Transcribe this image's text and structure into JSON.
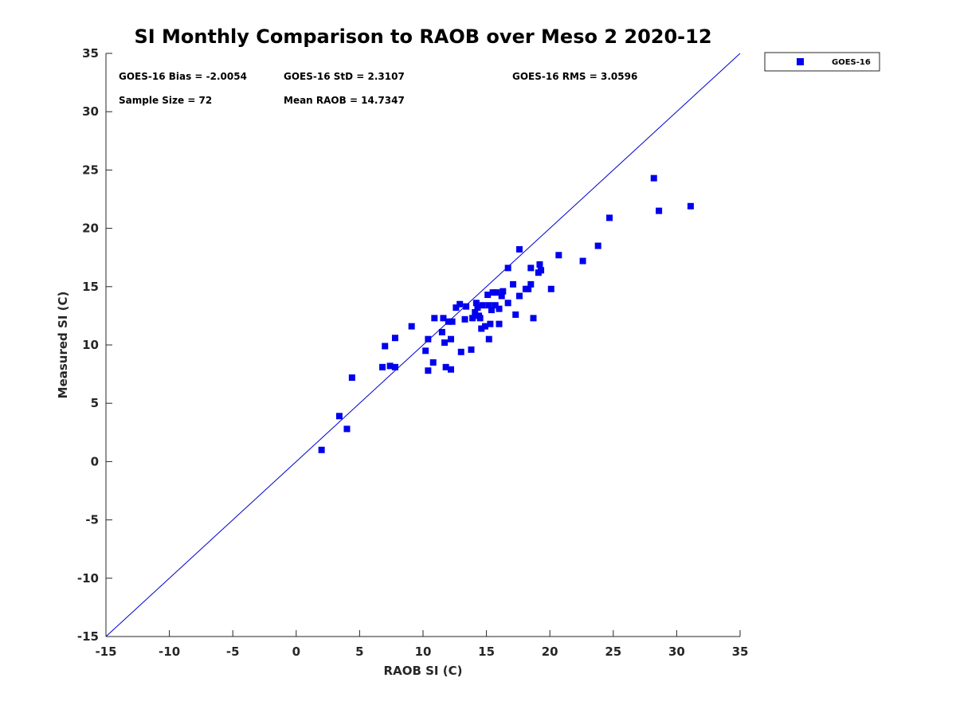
{
  "chart_data": {
    "type": "scatter",
    "title": "SI Monthly Comparison to RAOB over Meso 2 2020-12",
    "xlabel": "RAOB SI (C)",
    "ylabel": "Measured SI (C)",
    "xlim": [
      -15,
      35
    ],
    "ylim": [
      -15,
      35
    ],
    "xticks": [
      -15,
      -10,
      -5,
      0,
      5,
      10,
      15,
      20,
      25,
      30,
      35
    ],
    "yticks": [
      -15,
      -10,
      -5,
      0,
      5,
      10,
      15,
      20,
      25,
      30,
      35
    ],
    "grid": false,
    "legend_position": "outside-top-right",
    "colors": {
      "series": "#0000ee",
      "reference_line": "#0000cc",
      "axis": "#262626"
    },
    "reference_line": {
      "name": "one-to-one",
      "x": [
        -15,
        35
      ],
      "y": [
        -15,
        35
      ]
    },
    "stats": {
      "bias": "GOES-16 Bias = -2.0054",
      "std": "GOES-16 StD = 2.3107",
      "rms": "GOES-16 RMS = 3.0596",
      "sample_size": "Sample Size = 72",
      "mean_raob": "Mean RAOB = 14.7347"
    },
    "series": [
      {
        "name": "GOES-16",
        "marker": "square",
        "x": [
          2.0,
          3.4,
          4.0,
          4.4,
          6.8,
          7.0,
          7.4,
          7.8,
          7.8,
          9.1,
          10.2,
          10.4,
          10.4,
          10.8,
          10.9,
          11.5,
          11.6,
          11.7,
          11.8,
          12.0,
          12.2,
          12.2,
          12.3,
          12.6,
          12.9,
          13.0,
          13.3,
          13.4,
          13.8,
          13.9,
          14.1,
          14.2,
          14.3,
          14.4,
          14.5,
          14.6,
          14.7,
          14.9,
          15.1,
          15.2,
          15.2,
          15.3,
          15.4,
          15.5,
          15.7,
          15.8,
          16.0,
          16.0,
          16.2,
          16.3,
          16.7,
          16.7,
          17.1,
          17.3,
          17.6,
          17.6,
          18.1,
          18.3,
          18.5,
          18.5,
          18.7,
          19.1,
          19.2,
          19.3,
          20.1,
          20.7,
          22.6,
          23.8,
          24.7,
          28.2,
          28.6,
          31.1
        ],
        "y": [
          1.0,
          3.9,
          2.8,
          7.2,
          8.1,
          9.9,
          8.2,
          8.1,
          10.6,
          11.6,
          9.5,
          7.8,
          10.5,
          8.5,
          12.3,
          11.1,
          12.3,
          10.2,
          8.1,
          12.0,
          7.9,
          10.5,
          12.0,
          13.2,
          13.5,
          9.4,
          12.2,
          13.3,
          9.6,
          12.3,
          12.8,
          13.6,
          13.2,
          12.5,
          12.3,
          11.4,
          13.4,
          11.6,
          14.3,
          10.5,
          13.4,
          11.8,
          13.0,
          14.5,
          13.4,
          14.5,
          13.1,
          11.8,
          14.2,
          14.6,
          13.6,
          16.6,
          15.2,
          12.6,
          18.2,
          14.2,
          14.8,
          14.8,
          15.2,
          16.6,
          12.3,
          16.2,
          16.9,
          16.4,
          14.8,
          17.7,
          17.2,
          18.5,
          20.9,
          24.3,
          21.5,
          21.9
        ]
      }
    ]
  }
}
